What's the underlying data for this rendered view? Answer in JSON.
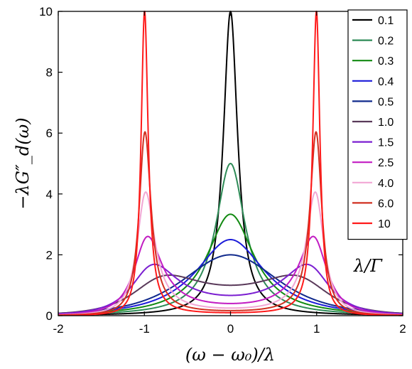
{
  "chart_data": {
    "type": "line",
    "xlabel": "(ω − ω₀)/λ",
    "ylabel": "−λG″_d(ω)",
    "xlim": [
      -2,
      2
    ],
    "ylim": [
      0,
      10
    ],
    "xticks": [
      "-2",
      "-1",
      "0",
      "1",
      "2"
    ],
    "yticks": [
      "0",
      "2",
      "4",
      "6",
      "8",
      "10"
    ],
    "legend_title": "λ/Γ",
    "legend_position": "top-right",
    "grid": false,
    "series": [
      {
        "name": "0.1",
        "ratio": 0.1,
        "color": "#000000"
      },
      {
        "name": "0.2",
        "ratio": 0.2,
        "color": "#2e8b57"
      },
      {
        "name": "0.3",
        "ratio": 0.3,
        "color": "#128a12"
      },
      {
        "name": "0.4",
        "ratio": 0.4,
        "color": "#1c1cd9"
      },
      {
        "name": "0.5",
        "ratio": 0.5,
        "color": "#102a8c"
      },
      {
        "name": "1.0",
        "ratio": 1.0,
        "color": "#5a3a5a"
      },
      {
        "name": "1.5",
        "ratio": 1.5,
        "color": "#7b1fd1"
      },
      {
        "name": "2.5",
        "ratio": 2.5,
        "color": "#c21cc2"
      },
      {
        "name": "4.0",
        "ratio": 4.0,
        "color": "#f2a7d4"
      },
      {
        "name": "6.0",
        "ratio": 6.0,
        "color": "#d03020"
      },
      {
        "name": "10",
        "ratio": 10.0,
        "color": "#ff1a1a"
      }
    ]
  }
}
